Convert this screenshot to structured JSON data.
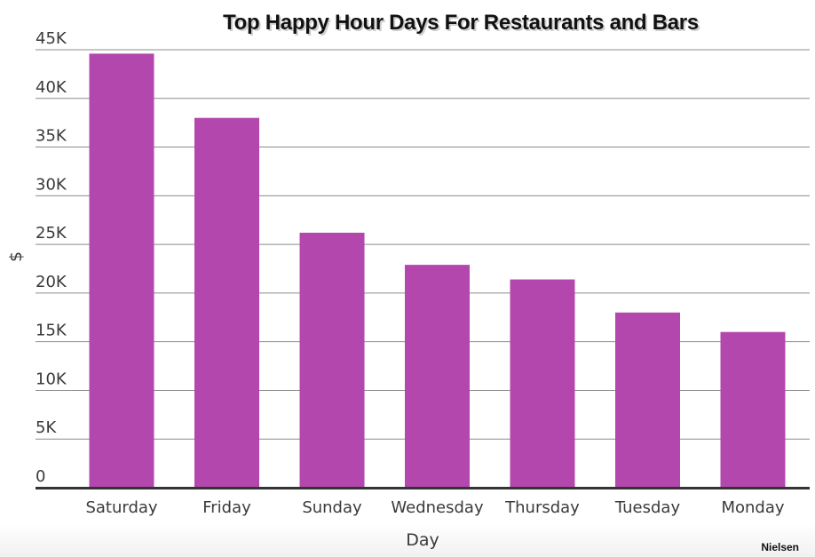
{
  "chart_data": {
    "type": "bar",
    "title": "Top Happy Hour Days For Restaurants and Bars",
    "xlabel": "Day",
    "ylabel": "$",
    "categories": [
      "Saturday",
      "Friday",
      "Sunday",
      "Wednesday",
      "Thursday",
      "Tuesday",
      "Monday"
    ],
    "values": [
      44600,
      38000,
      26200,
      22900,
      21400,
      18000,
      16000
    ],
    "ylim": [
      0,
      45000
    ],
    "yticks": [
      0,
      5000,
      10000,
      15000,
      20000,
      25000,
      30000,
      35000,
      40000,
      45000
    ],
    "ytick_labels": [
      "0",
      "5K",
      "10K",
      "15K",
      "20K",
      "25K",
      "30K",
      "35K",
      "40K",
      "45K"
    ],
    "grid": true,
    "bar_color": "#b347ad",
    "source": "Nielsen"
  }
}
